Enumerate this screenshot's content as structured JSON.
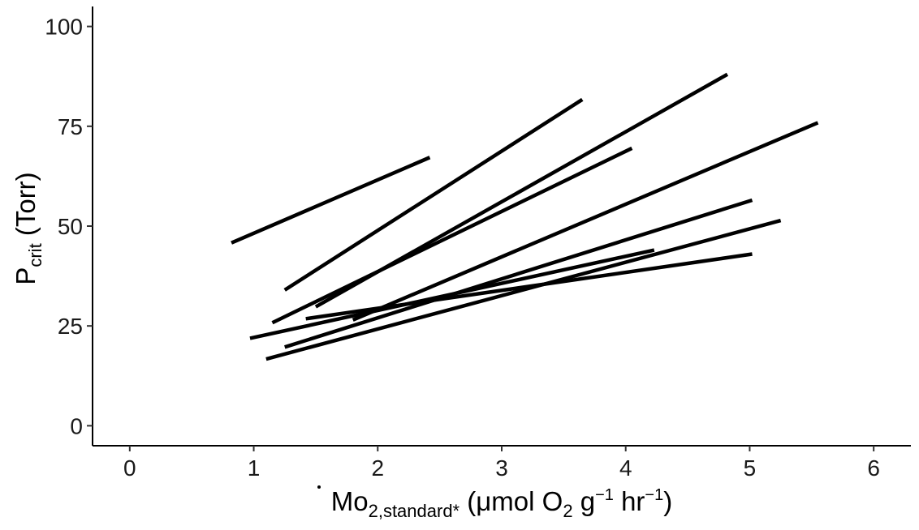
{
  "chart_data": {
    "type": "line",
    "title": "",
    "xlabel": {
      "base": "Mo",
      "sub": "2,standard*",
      "unit_open": " (μmol O",
      "unit_o2_sub": "2",
      "unit_g": " g",
      "unit_g_exp": "−1",
      "unit_hr": " hr",
      "unit_hr_exp": "−1",
      "unit_close": ")"
    },
    "ylabel": {
      "base": "P",
      "sub": "crit",
      "unit": " (Torr)"
    },
    "xlim": [
      -0.3,
      6.3
    ],
    "ylim": [
      -5,
      105
    ],
    "x_ticks": [
      0,
      1,
      2,
      3,
      4,
      5,
      6
    ],
    "y_ticks": [
      0,
      25,
      50,
      75,
      100
    ],
    "grid": false,
    "legend": "none",
    "line_color": "#000000",
    "series": [
      {
        "x": [
          0.82,
          2.42
        ],
        "y": [
          45.8,
          67.2
        ]
      },
      {
        "x": [
          1.25,
          3.65
        ],
        "y": [
          34.0,
          81.7
        ]
      },
      {
        "x": [
          1.15,
          4.05
        ],
        "y": [
          25.8,
          69.5
        ]
      },
      {
        "x": [
          1.5,
          4.82
        ],
        "y": [
          29.8,
          88.0
        ]
      },
      {
        "x": [
          1.8,
          5.55
        ],
        "y": [
          26.5,
          75.9
        ]
      },
      {
        "x": [
          1.25,
          5.02
        ],
        "y": [
          19.7,
          56.5
        ]
      },
      {
        "x": [
          1.1,
          5.25
        ],
        "y": [
          16.7,
          51.4
        ]
      },
      {
        "x": [
          0.97,
          4.23
        ],
        "y": [
          21.9,
          44.0
        ]
      },
      {
        "x": [
          1.42,
          5.02
        ],
        "y": [
          26.8,
          43.0
        ]
      }
    ]
  }
}
